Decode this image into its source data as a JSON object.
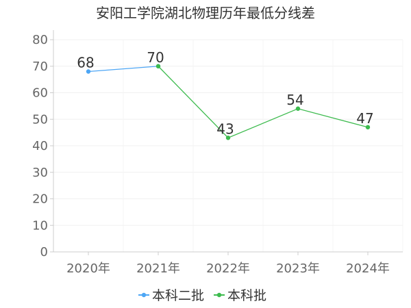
{
  "chart_data": {
    "type": "line",
    "title": "安阳工学院湖北物理历年最低分线差",
    "categories": [
      "2020年",
      "2021年",
      "2022年",
      "2023年",
      "2024年"
    ],
    "ylim": [
      0,
      80
    ],
    "yticks": [
      0,
      10,
      20,
      30,
      40,
      50,
      60,
      70,
      80
    ],
    "grid": true,
    "legend_position": "bottom",
    "series": [
      {
        "name": "本科二批",
        "color": "#4da6f5",
        "values": [
          68,
          70,
          null,
          null,
          null
        ]
      },
      {
        "name": "本科批",
        "color": "#3dbb4e",
        "values": [
          null,
          70,
          43,
          54,
          47
        ]
      }
    ],
    "data_labels": [
      "68",
      "70",
      "43",
      "54",
      "47"
    ]
  }
}
